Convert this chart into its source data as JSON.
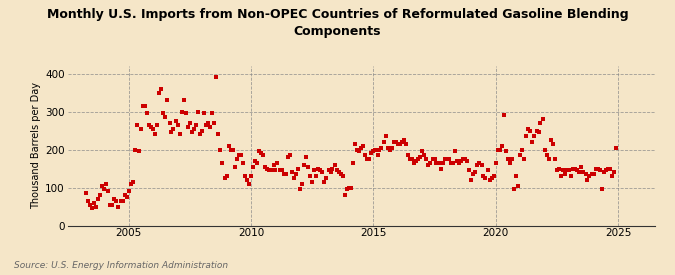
{
  "title": "Monthly U.S. Imports from Non-OPEC Countries of Reformulated Gasoline Blending\nComponents",
  "ylabel": "Thousand Barrels per Day",
  "source": "Source: U.S. Energy Information Administration",
  "background_color": "#f5e6c8",
  "plot_bg_color": "#f5e6c8",
  "marker_color": "#cc0000",
  "xlim_start": 2002.5,
  "xlim_end": 2026.5,
  "ylim": [
    0,
    420
  ],
  "yticks": [
    0,
    100,
    200,
    300,
    400
  ],
  "xticks": [
    2005,
    2010,
    2015,
    2020,
    2025
  ],
  "data": [
    [
      2003.25,
      85
    ],
    [
      2003.33,
      65
    ],
    [
      2003.42,
      55
    ],
    [
      2003.5,
      45
    ],
    [
      2003.58,
      60
    ],
    [
      2003.67,
      50
    ],
    [
      2003.75,
      70
    ],
    [
      2003.83,
      80
    ],
    [
      2003.92,
      105
    ],
    [
      2004.0,
      95
    ],
    [
      2004.08,
      110
    ],
    [
      2004.17,
      90
    ],
    [
      2004.25,
      55
    ],
    [
      2004.33,
      55
    ],
    [
      2004.42,
      70
    ],
    [
      2004.5,
      65
    ],
    [
      2004.58,
      50
    ],
    [
      2004.67,
      65
    ],
    [
      2004.75,
      65
    ],
    [
      2004.83,
      80
    ],
    [
      2004.92,
      75
    ],
    [
      2005.0,
      90
    ],
    [
      2005.08,
      110
    ],
    [
      2005.17,
      115
    ],
    [
      2005.25,
      200
    ],
    [
      2005.33,
      265
    ],
    [
      2005.42,
      195
    ],
    [
      2005.5,
      255
    ],
    [
      2005.58,
      315
    ],
    [
      2005.67,
      315
    ],
    [
      2005.75,
      295
    ],
    [
      2005.83,
      265
    ],
    [
      2005.92,
      260
    ],
    [
      2006.0,
      255
    ],
    [
      2006.08,
      240
    ],
    [
      2006.17,
      265
    ],
    [
      2006.25,
      350
    ],
    [
      2006.33,
      360
    ],
    [
      2006.42,
      295
    ],
    [
      2006.5,
      285
    ],
    [
      2006.58,
      330
    ],
    [
      2006.67,
      270
    ],
    [
      2006.75,
      245
    ],
    [
      2006.83,
      255
    ],
    [
      2006.92,
      275
    ],
    [
      2007.0,
      265
    ],
    [
      2007.08,
      240
    ],
    [
      2007.17,
      300
    ],
    [
      2007.25,
      330
    ],
    [
      2007.33,
      295
    ],
    [
      2007.42,
      260
    ],
    [
      2007.5,
      270
    ],
    [
      2007.58,
      245
    ],
    [
      2007.67,
      255
    ],
    [
      2007.75,
      265
    ],
    [
      2007.83,
      300
    ],
    [
      2007.92,
      240
    ],
    [
      2008.0,
      250
    ],
    [
      2008.08,
      295
    ],
    [
      2008.17,
      265
    ],
    [
      2008.25,
      270
    ],
    [
      2008.33,
      260
    ],
    [
      2008.42,
      295
    ],
    [
      2008.5,
      270
    ],
    [
      2008.58,
      390
    ],
    [
      2008.67,
      240
    ],
    [
      2008.75,
      200
    ],
    [
      2008.83,
      165
    ],
    [
      2008.92,
      125
    ],
    [
      2009.0,
      130
    ],
    [
      2009.08,
      210
    ],
    [
      2009.17,
      200
    ],
    [
      2009.25,
      200
    ],
    [
      2009.33,
      155
    ],
    [
      2009.42,
      175
    ],
    [
      2009.5,
      185
    ],
    [
      2009.58,
      185
    ],
    [
      2009.67,
      165
    ],
    [
      2009.75,
      130
    ],
    [
      2009.83,
      120
    ],
    [
      2009.92,
      110
    ],
    [
      2010.0,
      130
    ],
    [
      2010.08,
      155
    ],
    [
      2010.17,
      170
    ],
    [
      2010.25,
      165
    ],
    [
      2010.33,
      195
    ],
    [
      2010.42,
      190
    ],
    [
      2010.5,
      185
    ],
    [
      2010.58,
      155
    ],
    [
      2010.67,
      150
    ],
    [
      2010.75,
      145
    ],
    [
      2010.83,
      145
    ],
    [
      2010.92,
      160
    ],
    [
      2011.0,
      145
    ],
    [
      2011.08,
      165
    ],
    [
      2011.17,
      145
    ],
    [
      2011.25,
      145
    ],
    [
      2011.33,
      135
    ],
    [
      2011.42,
      135
    ],
    [
      2011.5,
      180
    ],
    [
      2011.58,
      185
    ],
    [
      2011.67,
      140
    ],
    [
      2011.75,
      125
    ],
    [
      2011.83,
      135
    ],
    [
      2011.92,
      150
    ],
    [
      2012.0,
      95
    ],
    [
      2012.08,
      110
    ],
    [
      2012.17,
      160
    ],
    [
      2012.25,
      180
    ],
    [
      2012.33,
      155
    ],
    [
      2012.42,
      130
    ],
    [
      2012.5,
      115
    ],
    [
      2012.58,
      145
    ],
    [
      2012.67,
      130
    ],
    [
      2012.75,
      150
    ],
    [
      2012.83,
      145
    ],
    [
      2012.92,
      140
    ],
    [
      2013.0,
      115
    ],
    [
      2013.08,
      125
    ],
    [
      2013.17,
      145
    ],
    [
      2013.25,
      140
    ],
    [
      2013.33,
      150
    ],
    [
      2013.42,
      160
    ],
    [
      2013.5,
      145
    ],
    [
      2013.58,
      140
    ],
    [
      2013.67,
      135
    ],
    [
      2013.75,
      130
    ],
    [
      2013.83,
      80
    ],
    [
      2013.92,
      95
    ],
    [
      2014.0,
      100
    ],
    [
      2014.08,
      100
    ],
    [
      2014.17,
      165
    ],
    [
      2014.25,
      215
    ],
    [
      2014.33,
      200
    ],
    [
      2014.42,
      195
    ],
    [
      2014.5,
      205
    ],
    [
      2014.58,
      210
    ],
    [
      2014.67,
      185
    ],
    [
      2014.75,
      175
    ],
    [
      2014.83,
      175
    ],
    [
      2014.92,
      190
    ],
    [
      2015.0,
      195
    ],
    [
      2015.08,
      200
    ],
    [
      2015.17,
      185
    ],
    [
      2015.25,
      200
    ],
    [
      2015.33,
      205
    ],
    [
      2015.42,
      220
    ],
    [
      2015.5,
      235
    ],
    [
      2015.58,
      205
    ],
    [
      2015.67,
      200
    ],
    [
      2015.75,
      205
    ],
    [
      2015.83,
      220
    ],
    [
      2015.92,
      220
    ],
    [
      2016.0,
      215
    ],
    [
      2016.08,
      215
    ],
    [
      2016.17,
      220
    ],
    [
      2016.25,
      225
    ],
    [
      2016.33,
      215
    ],
    [
      2016.42,
      185
    ],
    [
      2016.5,
      175
    ],
    [
      2016.58,
      175
    ],
    [
      2016.67,
      165
    ],
    [
      2016.75,
      170
    ],
    [
      2016.83,
      175
    ],
    [
      2016.92,
      180
    ],
    [
      2017.0,
      195
    ],
    [
      2017.08,
      185
    ],
    [
      2017.17,
      175
    ],
    [
      2017.25,
      160
    ],
    [
      2017.33,
      165
    ],
    [
      2017.42,
      175
    ],
    [
      2017.5,
      175
    ],
    [
      2017.58,
      165
    ],
    [
      2017.67,
      165
    ],
    [
      2017.75,
      150
    ],
    [
      2017.83,
      165
    ],
    [
      2017.92,
      175
    ],
    [
      2018.0,
      175
    ],
    [
      2018.08,
      175
    ],
    [
      2018.17,
      165
    ],
    [
      2018.25,
      165
    ],
    [
      2018.33,
      195
    ],
    [
      2018.42,
      170
    ],
    [
      2018.5,
      165
    ],
    [
      2018.58,
      170
    ],
    [
      2018.67,
      175
    ],
    [
      2018.75,
      175
    ],
    [
      2018.83,
      170
    ],
    [
      2018.92,
      145
    ],
    [
      2019.0,
      120
    ],
    [
      2019.08,
      135
    ],
    [
      2019.17,
      140
    ],
    [
      2019.25,
      160
    ],
    [
      2019.33,
      165
    ],
    [
      2019.42,
      160
    ],
    [
      2019.5,
      130
    ],
    [
      2019.58,
      125
    ],
    [
      2019.67,
      145
    ],
    [
      2019.75,
      120
    ],
    [
      2019.83,
      125
    ],
    [
      2019.92,
      130
    ],
    [
      2020.0,
      165
    ],
    [
      2020.08,
      200
    ],
    [
      2020.17,
      200
    ],
    [
      2020.25,
      210
    ],
    [
      2020.33,
      290
    ],
    [
      2020.42,
      195
    ],
    [
      2020.5,
      175
    ],
    [
      2020.58,
      165
    ],
    [
      2020.67,
      175
    ],
    [
      2020.75,
      95
    ],
    [
      2020.83,
      130
    ],
    [
      2020.92,
      105
    ],
    [
      2021.0,
      185
    ],
    [
      2021.08,
      200
    ],
    [
      2021.17,
      175
    ],
    [
      2021.25,
      235
    ],
    [
      2021.33,
      255
    ],
    [
      2021.42,
      250
    ],
    [
      2021.5,
      220
    ],
    [
      2021.58,
      235
    ],
    [
      2021.67,
      250
    ],
    [
      2021.75,
      245
    ],
    [
      2021.83,
      270
    ],
    [
      2021.92,
      280
    ],
    [
      2022.0,
      200
    ],
    [
      2022.08,
      185
    ],
    [
      2022.17,
      175
    ],
    [
      2022.25,
      225
    ],
    [
      2022.33,
      215
    ],
    [
      2022.42,
      175
    ],
    [
      2022.5,
      145
    ],
    [
      2022.58,
      150
    ],
    [
      2022.67,
      130
    ],
    [
      2022.75,
      145
    ],
    [
      2022.83,
      135
    ],
    [
      2022.92,
      145
    ],
    [
      2023.0,
      145
    ],
    [
      2023.08,
      130
    ],
    [
      2023.17,
      150
    ],
    [
      2023.25,
      150
    ],
    [
      2023.33,
      145
    ],
    [
      2023.42,
      140
    ],
    [
      2023.5,
      155
    ],
    [
      2023.58,
      140
    ],
    [
      2023.67,
      135
    ],
    [
      2023.75,
      120
    ],
    [
      2023.83,
      130
    ],
    [
      2023.92,
      135
    ],
    [
      2024.0,
      135
    ],
    [
      2024.08,
      150
    ],
    [
      2024.17,
      150
    ],
    [
      2024.25,
      145
    ],
    [
      2024.33,
      95
    ],
    [
      2024.42,
      140
    ],
    [
      2024.5,
      145
    ],
    [
      2024.58,
      150
    ],
    [
      2024.67,
      150
    ],
    [
      2024.75,
      130
    ],
    [
      2024.83,
      140
    ],
    [
      2024.92,
      205
    ]
  ]
}
